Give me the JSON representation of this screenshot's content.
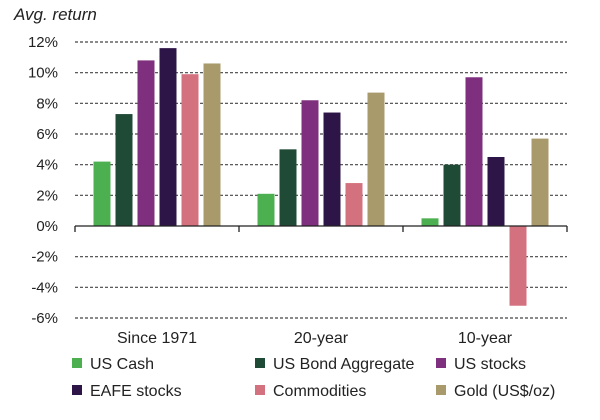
{
  "chart_data": {
    "type": "bar",
    "title": "",
    "ylabel": "Avg.  return",
    "xlabel": "",
    "categories": [
      "Since 1971",
      "20-year",
      "10-year"
    ],
    "ylim": [
      -6,
      12
    ],
    "yticks": [
      -6,
      -4,
      -2,
      0,
      2,
      4,
      6,
      8,
      10,
      12
    ],
    "ytick_labels": [
      "-6%",
      "-4%",
      "-2%",
      "0%",
      "2%",
      "4%",
      "6%",
      "8%",
      "10%",
      "12%"
    ],
    "grid": true,
    "legend_position": "bottom",
    "series": [
      {
        "name": "US Cash",
        "color": "#4caf50",
        "values": [
          4.2,
          2.1,
          0.5
        ]
      },
      {
        "name": "US Bond Aggregate",
        "color": "#1f4a35",
        "values": [
          7.3,
          5.0,
          4.0
        ]
      },
      {
        "name": "US stocks",
        "color": "#7e2f7d",
        "values": [
          10.8,
          8.2,
          9.7
        ]
      },
      {
        "name": "EAFE stocks",
        "color": "#2d1547",
        "values": [
          11.6,
          7.4,
          4.5
        ]
      },
      {
        "name": "Commodities",
        "color": "#d4717e",
        "values": [
          9.9,
          2.8,
          -5.2
        ]
      },
      {
        "name": "Gold (US$/oz)",
        "color": "#a89a6a",
        "values": [
          10.6,
          8.7,
          5.7
        ]
      }
    ]
  }
}
